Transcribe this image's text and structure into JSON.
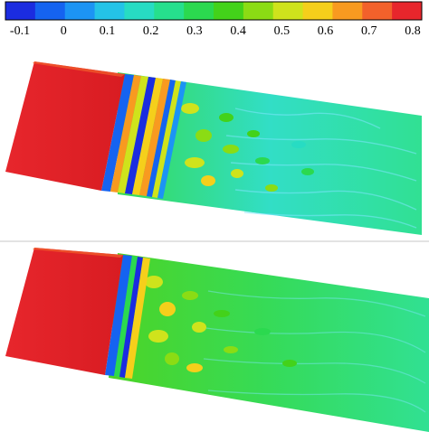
{
  "colorbar": {
    "tick_labels": [
      "-0.1",
      "0",
      "0.1",
      "0.2",
      "0.3",
      "0.4",
      "0.5",
      "0.6",
      "0.7",
      "0.8"
    ],
    "min": -0.1,
    "max": 0.8,
    "colors": [
      "#1b2ce0",
      "#1563f0",
      "#1c94f4",
      "#24c3e7",
      "#27dcc3",
      "#26df8d",
      "#2bd94f",
      "#43d21a",
      "#8bdc14",
      "#cfe31c",
      "#f5cf1b",
      "#f89a20",
      "#f2612b",
      "#e7262c"
    ]
  },
  "panels": [
    {
      "id": "top",
      "description_colors": {
        "inflow": "#e7262c",
        "wake": "#26df8d"
      }
    },
    {
      "id": "bottom",
      "description_colors": {
        "inflow": "#e7262c",
        "wake": "#26df8d"
      }
    }
  ]
}
